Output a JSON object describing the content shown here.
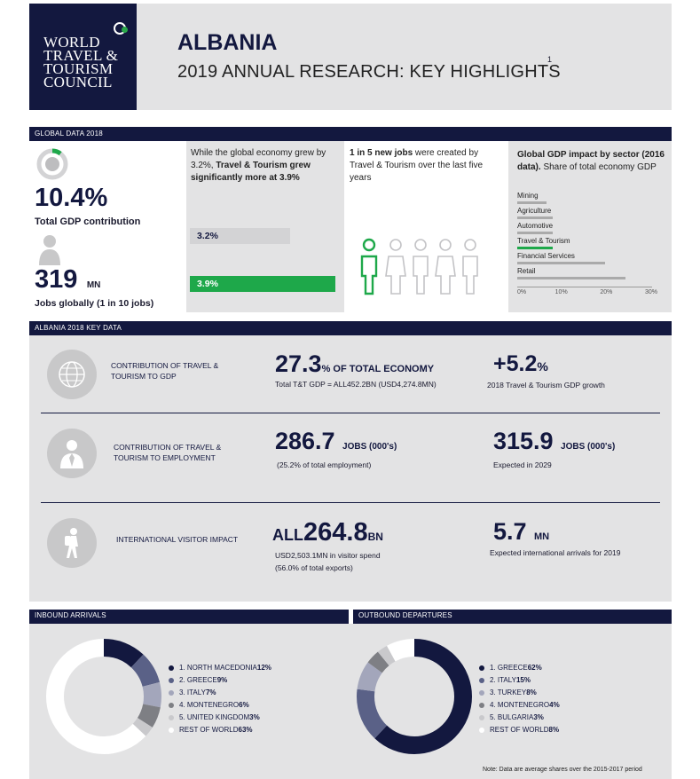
{
  "header": {
    "logo_lines": [
      "WORLD",
      "TRAVEL &",
      "TOURISM",
      "COUNCIL"
    ],
    "country": "ALBANIA",
    "subtitle": "2019 ANNUAL RESEARCH: KEY HIGHLIGHTS",
    "footnote_marker": "1"
  },
  "global": {
    "section_label": "GLOBAL DATA 2018",
    "gdp_value": "10.4%",
    "gdp_label": "Total GDP contribution",
    "jobs_value": "319",
    "jobs_unit": "MN",
    "jobs_label": "Jobs globally (1 in 10 jobs)",
    "growth_text_1": "While the global economy grew by 3.2%,",
    "growth_text_bold": "Travel & Tourism grew significantly more at",
    "growth_text_bold_value": "3.9%",
    "bar_economy": "3.2%",
    "bar_tourism": "3.9%",
    "bar_economy_value": 3.2,
    "bar_tourism_value": 3.9,
    "jobs_text_bold": "1 in 5 new jobs",
    "jobs_text_rest": "were created by Travel & Tourism over the last five years",
    "sector_title_bold": "Global GDP impact by sector (2016 data).",
    "sector_title_rest": "Share of total economy GDP",
    "sectors": [
      {
        "name": "Mining",
        "value": 6.5,
        "highlight": false
      },
      {
        "name": "Agriculture",
        "value": 7.8,
        "highlight": false
      },
      {
        "name": "Automotive",
        "value": 7.8,
        "highlight": false
      },
      {
        "name": "Travel & Tourism",
        "value": 7.8,
        "highlight": true
      },
      {
        "name": "Financial Services",
        "value": 19.5,
        "highlight": false
      },
      {
        "name": "Retail",
        "value": 24,
        "highlight": false
      }
    ],
    "sector_ticks": [
      "0%",
      "10%",
      "20%",
      "30%"
    ],
    "sector_max": 30,
    "colors": {
      "navy": "#13183f",
      "green": "#1ea84a",
      "grey": "#aaaaaa"
    }
  },
  "albania": {
    "section_label": "ALBANIA 2018 KEY DATA",
    "rows": [
      {
        "label": "CONTRIBUTION OF TRAVEL & TOURISM TO GDP",
        "main_value": "27.3",
        "main_unit": "% OF TOTAL ECONOMY",
        "main_sub": "Total T&T GDP = ALL452.2BN (USD4,274.8MN)",
        "side_value": "+5.2",
        "side_unit": "%",
        "side_sub": "2018 Travel & Tourism GDP growth"
      },
      {
        "label": "CONTRIBUTION OF TRAVEL & TOURISM TO EMPLOYMENT",
        "main_value": "286.7",
        "main_unit": "JOBS (000's)",
        "main_sub": "(25.2% of total employment)",
        "side_value": "315.9",
        "side_unit": "JOBS (000's)",
        "side_sub": "Expected in 2029"
      },
      {
        "label": "INTERNATIONAL VISITOR IMPACT",
        "main_prefix": "ALL",
        "main_value": "264.8",
        "main_unit": "BN",
        "main_sub": "USD2,503.1MN in visitor spend",
        "main_sub2": "(56.0% of total exports)",
        "side_value": "5.7",
        "side_unit": "MN",
        "side_sub": "Expected international arrivals for 2019"
      }
    ]
  },
  "inbound": {
    "section_label": "INBOUND ARRIVALS",
    "items": [
      {
        "label": "1. NORTH MACEDONIA",
        "value": "12%",
        "share": 12,
        "color": "#13183f"
      },
      {
        "label": "2. GREECE",
        "value": "9%",
        "share": 9,
        "color": "#5a6187"
      },
      {
        "label": "3. ITALY",
        "value": "7%",
        "share": 7,
        "color": "#a3a6bb"
      },
      {
        "label": "4. MONTENEGRO",
        "value": "6%",
        "share": 6,
        "color": "#7e7f84"
      },
      {
        "label": "5. UNITED KINGDOM",
        "value": "3%",
        "share": 3,
        "color": "#c9c9cc"
      },
      {
        "label": "REST OF WORLD",
        "value": "63%",
        "share": 63,
        "color": "#ffffff"
      }
    ]
  },
  "outbound": {
    "section_label": "OUTBOUND DEPARTURES",
    "items": [
      {
        "label": "1. GREECE",
        "value": "62%",
        "share": 62,
        "color": "#13183f"
      },
      {
        "label": "2. ITALY",
        "value": "15%",
        "share": 15,
        "color": "#5a6187"
      },
      {
        "label": "3. TURKEY",
        "value": "8%",
        "share": 8,
        "color": "#a3a6bb"
      },
      {
        "label": "4. MONTENEGRO",
        "value": "4%",
        "share": 4,
        "color": "#7e7f84"
      },
      {
        "label": "5. BULGARIA",
        "value": "3%",
        "share": 3,
        "color": "#c9c9cc"
      },
      {
        "label": "REST OF WORLD",
        "value": "8%",
        "share": 8,
        "color": "#ffffff"
      }
    ]
  },
  "note": "Note: Data are average shares over the 2015-2017 period"
}
